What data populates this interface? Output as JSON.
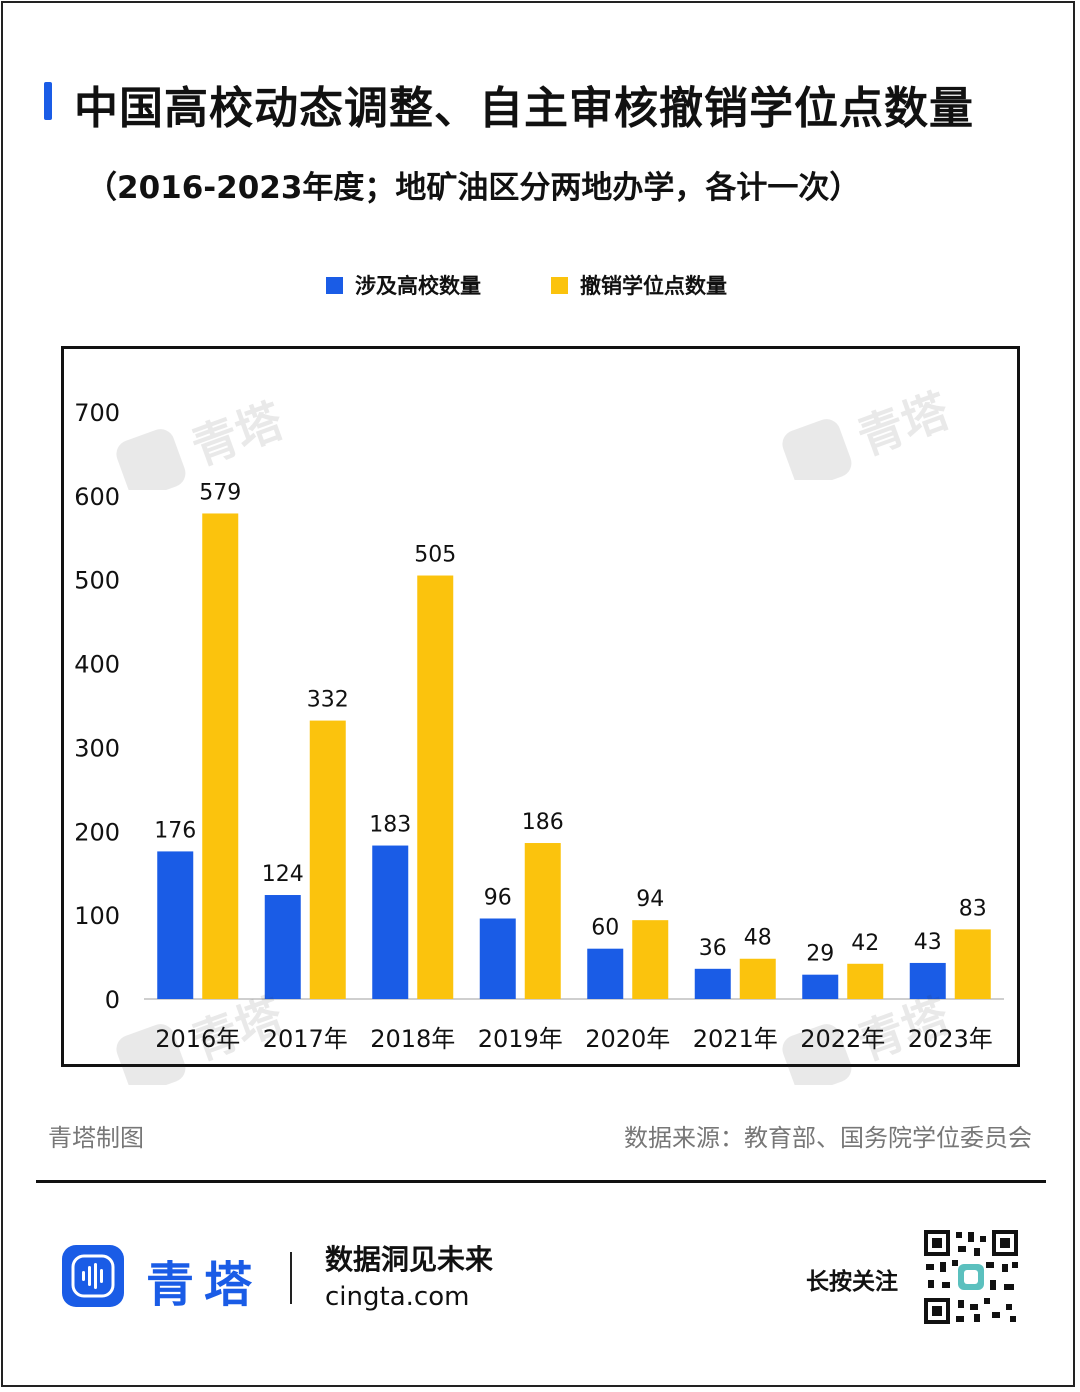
{
  "header": {
    "title": "中国高校动态调整、自主审核撤销学位点数量",
    "subtitle": "（2016-2023年度；地矿油区分两地办学，各计一次）"
  },
  "colors": {
    "accent": "#1a5ce6",
    "series_blue": "#1a5ce6",
    "series_yellow": "#fbc30d"
  },
  "legend": {
    "items": [
      {
        "label": "涉及高校数量",
        "color": "#1a5ce6"
      },
      {
        "label": "撤销学位点数量",
        "color": "#fbc30d"
      }
    ]
  },
  "chart_data": {
    "type": "bar",
    "title": "中国高校动态调整、自主审核撤销学位点数量",
    "subtitle": "（2016-2023年度；地矿油区分两地办学，各计一次）",
    "categories": [
      "2016年",
      "2017年",
      "2018年",
      "2019年",
      "2020年",
      "2021年",
      "2022年",
      "2023年"
    ],
    "series": [
      {
        "name": "涉及高校数量",
        "color": "#1a5ce6",
        "values": [
          176,
          124,
          183,
          96,
          60,
          36,
          29,
          43
        ]
      },
      {
        "name": "撤销学位点数量",
        "color": "#fbc30d",
        "values": [
          579,
          332,
          505,
          186,
          94,
          48,
          42,
          83
        ]
      }
    ],
    "yticks": [
      0,
      100,
      200,
      300,
      400,
      500,
      600,
      700
    ],
    "ylim": [
      0,
      700
    ],
    "xlabel": "",
    "ylabel": "",
    "grid": false,
    "legend_position": "top-center",
    "data_labels": true
  },
  "watermark": {
    "text": "青塔"
  },
  "footer": {
    "credit": "青塔制图",
    "source": "数据来源：教育部、国务院学位委员会"
  },
  "brand": {
    "name": "青塔",
    "slogan": "数据洞见未来",
    "site": "cingta.com",
    "follow": "长按关注"
  }
}
